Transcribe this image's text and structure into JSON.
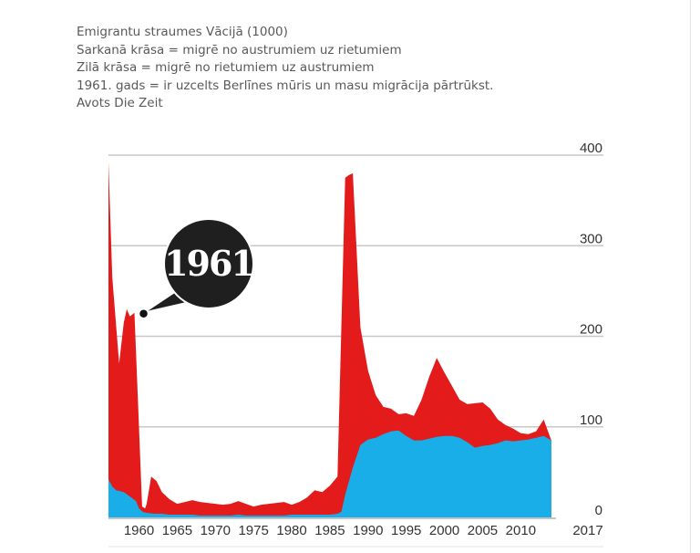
{
  "caption": {
    "line1": "Emigrantu straumes Vācijā (1000)",
    "line2": "Sarkanā krāsa = migrē no austrumiem uz rietumiem",
    "line3": "Zilā krāsa = migrē no rietumiem uz austrumiem",
    "line4": "1961. gads = ir uzcelts Berlīnes mūris un masu migrācija pārtrūkst.",
    "line5": "Avots Die Zeit"
  },
  "chart_data": {
    "type": "area",
    "x_tick_labels": [
      "1960",
      "1965",
      "1970",
      "1975",
      "1980",
      "1985",
      "1990",
      "1995",
      "2000",
      "2005",
      "2010",
      "2017"
    ],
    "y_tick_labels": [
      "0",
      "100",
      "200",
      "300",
      "400"
    ],
    "ylim": [
      0,
      400
    ],
    "xlim": [
      1956,
      2017
    ],
    "grid": "horizontal",
    "annotation": {
      "label": "1961",
      "x": 1960.6,
      "y": 225
    },
    "series": [
      {
        "color": "#e31b1b",
        "points": [
          [
            1956,
            392
          ],
          [
            1956.5,
            265
          ],
          [
            1957.4,
            170
          ],
          [
            1958,
            215
          ],
          [
            1958.4,
            230
          ],
          [
            1958.8,
            222
          ],
          [
            1959.4,
            226
          ],
          [
            1959.9,
            120
          ],
          [
            1960.4,
            12
          ],
          [
            1960.8,
            10
          ],
          [
            1961,
            15
          ],
          [
            1961.6,
            45
          ],
          [
            1962.3,
            40
          ],
          [
            1963,
            28
          ],
          [
            1964,
            20
          ],
          [
            1965,
            15
          ],
          [
            1966,
            17
          ],
          [
            1967,
            19
          ],
          [
            1968,
            17
          ],
          [
            1969,
            16
          ],
          [
            1970,
            15
          ],
          [
            1971,
            14
          ],
          [
            1972,
            15
          ],
          [
            1973,
            18
          ],
          [
            1974,
            15
          ],
          [
            1975,
            12
          ],
          [
            1976,
            14
          ],
          [
            1977,
            15
          ],
          [
            1978,
            16
          ],
          [
            1979,
            17
          ],
          [
            1980,
            14
          ],
          [
            1981,
            17
          ],
          [
            1982,
            22
          ],
          [
            1983,
            30
          ],
          [
            1984,
            28
          ],
          [
            1985,
            35
          ],
          [
            1986,
            45
          ],
          [
            1987,
            375
          ],
          [
            1987.5,
            378
          ],
          [
            1988,
            380
          ],
          [
            1989,
            210
          ],
          [
            1990,
            162
          ],
          [
            1991,
            135
          ],
          [
            1992,
            122
          ],
          [
            1993,
            120
          ],
          [
            1994,
            114
          ],
          [
            1995,
            115
          ],
          [
            1996,
            112
          ],
          [
            1997,
            130
          ],
          [
            1998,
            155
          ],
          [
            1999,
            176
          ],
          [
            2000,
            160
          ],
          [
            2001,
            145
          ],
          [
            2002,
            130
          ],
          [
            2003,
            125
          ],
          [
            2004,
            126
          ],
          [
            2005,
            127
          ],
          [
            2006,
            120
          ],
          [
            2007,
            108
          ],
          [
            2008,
            102
          ],
          [
            2009,
            98
          ],
          [
            2010,
            93
          ],
          [
            2011,
            92
          ],
          [
            2012,
            95
          ],
          [
            2013,
            108
          ],
          [
            2014,
            85
          ]
        ]
      },
      {
        "color": "#1aaee8",
        "points": [
          [
            1956,
            42
          ],
          [
            1956.5,
            34
          ],
          [
            1957,
            30
          ],
          [
            1958,
            28
          ],
          [
            1959,
            22
          ],
          [
            1959.6,
            18
          ],
          [
            1960,
            10
          ],
          [
            1960.5,
            6
          ],
          [
            1961,
            5
          ],
          [
            1962,
            4
          ],
          [
            1963,
            4
          ],
          [
            1964,
            3
          ],
          [
            1965,
            3
          ],
          [
            1966,
            3
          ],
          [
            1967,
            3
          ],
          [
            1968,
            2
          ],
          [
            1969,
            2
          ],
          [
            1970,
            2
          ],
          [
            1971,
            2
          ],
          [
            1972,
            2
          ],
          [
            1973,
            3
          ],
          [
            1974,
            2
          ],
          [
            1975,
            2
          ],
          [
            1976,
            2
          ],
          [
            1977,
            2
          ],
          [
            1978,
            2
          ],
          [
            1979,
            2
          ],
          [
            1980,
            3
          ],
          [
            1981,
            3
          ],
          [
            1982,
            3
          ],
          [
            1983,
            3
          ],
          [
            1984,
            3
          ],
          [
            1985,
            3
          ],
          [
            1986,
            4
          ],
          [
            1986.5,
            6
          ],
          [
            1987,
            25
          ],
          [
            1988,
            55
          ],
          [
            1989,
            80
          ],
          [
            1990,
            86
          ],
          [
            1991,
            88
          ],
          [
            1992,
            92
          ],
          [
            1993,
            95
          ],
          [
            1994,
            96
          ],
          [
            1995,
            90
          ],
          [
            1996,
            85
          ],
          [
            1997,
            85
          ],
          [
            1998,
            87
          ],
          [
            1999,
            89
          ],
          [
            2000,
            90
          ],
          [
            2001,
            90
          ],
          [
            2002,
            88
          ],
          [
            2003,
            83
          ],
          [
            2004,
            77
          ],
          [
            2005,
            79
          ],
          [
            2006,
            80
          ],
          [
            2007,
            82
          ],
          [
            2008,
            85
          ],
          [
            2009,
            84
          ],
          [
            2010,
            85
          ],
          [
            2011,
            86
          ],
          [
            2012,
            88
          ],
          [
            2013,
            90
          ],
          [
            2014,
            85
          ]
        ]
      }
    ]
  }
}
